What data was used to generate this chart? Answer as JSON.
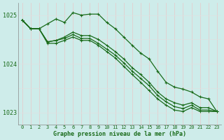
{
  "line1": [
    1024.9,
    1024.72,
    1024.72,
    1024.82,
    1024.92,
    1024.85,
    1025.05,
    1025.0,
    1025.02,
    1025.02,
    1024.85,
    1024.72,
    1024.55,
    1024.38,
    1024.22,
    1024.1,
    1023.85,
    1023.62,
    1023.52,
    1023.48,
    1023.42,
    1023.32,
    1023.28,
    1023.02
  ],
  "line2": [
    1024.9,
    1024.72,
    1024.72,
    1024.45,
    1024.48,
    1024.55,
    1024.65,
    1024.58,
    1024.58,
    1024.5,
    1024.38,
    1024.25,
    1024.1,
    1023.92,
    1023.78,
    1023.62,
    1023.42,
    1023.28,
    1023.2,
    1023.15,
    1023.2,
    1023.1,
    1023.1,
    1023.02
  ],
  "line3": [
    1024.9,
    1024.72,
    1024.72,
    1024.45,
    1024.48,
    1024.52,
    1024.6,
    1024.52,
    1024.52,
    1024.42,
    1024.3,
    1024.18,
    1024.02,
    1023.85,
    1023.7,
    1023.55,
    1023.35,
    1023.22,
    1023.12,
    1023.08,
    1023.15,
    1023.05,
    1023.05,
    1023.02
  ],
  "line4": [
    1024.9,
    1024.72,
    1024.72,
    1024.42,
    1024.42,
    1024.48,
    1024.55,
    1024.48,
    1024.48,
    1024.38,
    1024.25,
    1024.12,
    1023.95,
    1023.78,
    1023.62,
    1023.45,
    1023.28,
    1023.15,
    1023.05,
    1023.02,
    1023.1,
    1023.02,
    1023.02,
    1023.02
  ],
  "line_color": "#1a6b1a",
  "bg_color": "#ceecea",
  "grid_v_color": "#e8c8c8",
  "grid_h_color": "#e0e0e0",
  "xlabel": "Graphe pression niveau de la mer (hPa)",
  "xlabel_color": "#1a6b1a",
  "tick_color": "#1a6b1a",
  "ylim": [
    1022.75,
    1025.25
  ],
  "yticks": [
    1023,
    1024,
    1025
  ],
  "xlim": [
    -0.5,
    23.5
  ],
  "xticks": [
    0,
    1,
    2,
    3,
    4,
    5,
    6,
    7,
    8,
    9,
    10,
    11,
    12,
    13,
    14,
    15,
    16,
    17,
    18,
    19,
    20,
    21,
    22,
    23
  ],
  "figw": 3.2,
  "figh": 2.0,
  "dpi": 100
}
